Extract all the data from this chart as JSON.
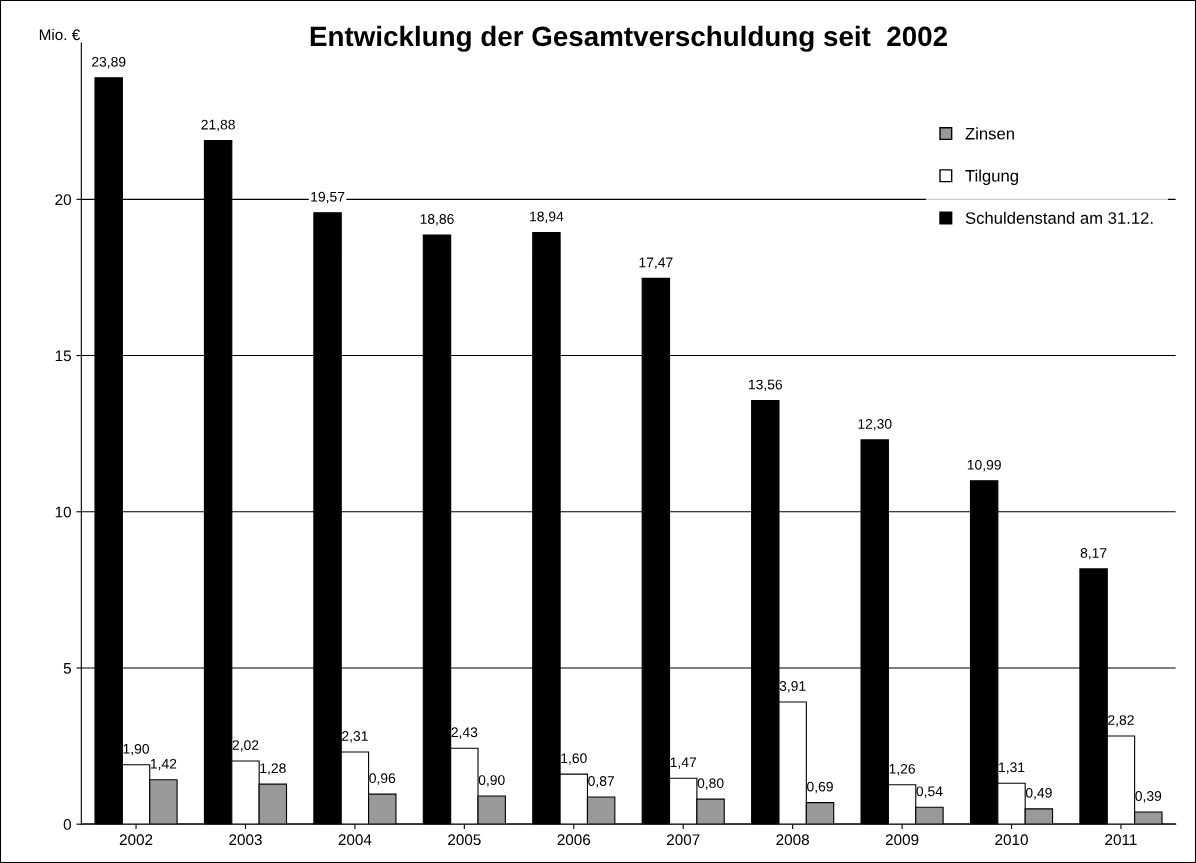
{
  "chart_data": {
    "type": "bar",
    "title": "Entwicklung der Gesamtverschuldung seit  2002",
    "ylabel": "Mio. €",
    "categories": [
      "2002",
      "2003",
      "2004",
      "2005",
      "2006",
      "2007",
      "2008",
      "2009",
      "2010",
      "2011"
    ],
    "series": [
      {
        "name": "Schuldenstand am 31.12.",
        "color": "#000000",
        "values": [
          23.89,
          21.88,
          19.57,
          18.86,
          18.94,
          17.47,
          13.56,
          12.3,
          10.99,
          8.17
        ],
        "value_labels": [
          "23,89",
          "21,88",
          "19,57",
          "18,86",
          "18,94",
          "17,47",
          "13,56",
          "12,30",
          "10,99",
          "8,17"
        ]
      },
      {
        "name": "Tilgung",
        "color": "#ffffff",
        "values": [
          1.9,
          2.02,
          2.31,
          2.43,
          1.6,
          1.47,
          3.91,
          1.26,
          1.31,
          2.82
        ],
        "value_labels": [
          "1,90",
          "2,02",
          "2,31",
          "2,43",
          "1,60",
          "1,47",
          "3,91",
          "1,26",
          "1,31",
          "2,82"
        ]
      },
      {
        "name": "Zinsen",
        "color": "#999999",
        "values": [
          1.42,
          1.28,
          0.96,
          0.9,
          0.87,
          0.8,
          0.69,
          0.54,
          0.49,
          0.39
        ],
        "value_labels": [
          "1,42",
          "1,28",
          "0,96",
          "0,90",
          "0,87",
          "0,80",
          "0,69",
          "0,54",
          "0,49",
          "0,39"
        ]
      }
    ],
    "ylim": [
      0,
      25
    ],
    "yticks": [
      0,
      5,
      10,
      15,
      20
    ],
    "grid": "y",
    "legend": "top right"
  }
}
